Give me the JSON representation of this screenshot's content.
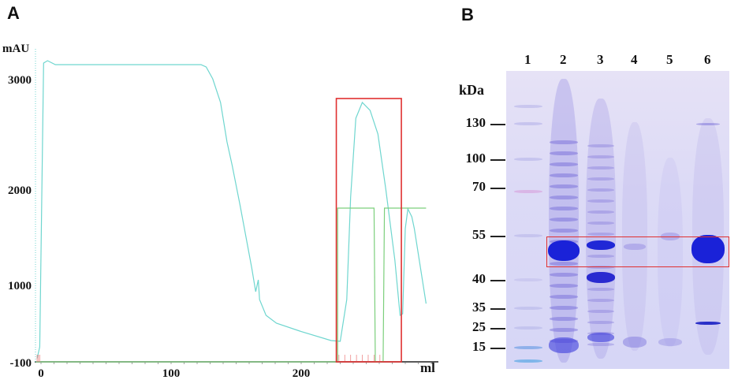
{
  "panel_a": {
    "label": "A",
    "chart_data": {
      "type": "line",
      "title": "",
      "xlabel": "ml",
      "ylabel": "mAU",
      "xlim": [
        -4,
        305
      ],
      "ylim": [
        -100,
        3300
      ],
      "x_ticks": [
        0,
        100,
        200
      ],
      "y_ticks": [
        -100,
        1000,
        2000,
        3000
      ],
      "grid": false,
      "series": [
        {
          "color": "#6fd6cf",
          "x": [
            -3,
            -1,
            2,
            5,
            11,
            29,
            123,
            127,
            132,
            138,
            143,
            147,
            153,
            162,
            165,
            167,
            168,
            173,
            181,
            199,
            223,
            230,
            235,
            238,
            242,
            247,
            253,
            259,
            265,
            272,
            276,
            278,
            280,
            282,
            285,
            287,
            296
          ],
          "y": [
            -66,
            62,
            3139,
            3165,
            3122,
            3122,
            3122,
            3097,
            2968,
            2712,
            2285,
            2028,
            1601,
            917,
            661,
            789,
            575,
            404,
            319,
            233,
            131,
            122,
            575,
            1686,
            2541,
            2712,
            2626,
            2370,
            1772,
            1003,
            404,
            421,
            1344,
            1558,
            1473,
            1344,
            532
          ]
        },
        {
          "color": "#7ccf7c",
          "x": [
            -4,
            228,
            228,
            256,
            257,
            263,
            264,
            296
          ],
          "y": [
            -100,
            -100,
            1567,
            1567,
            -100,
            -100,
            1567,
            1567
          ]
        }
      ],
      "highlight_box": {
        "x": [
          227,
          277
        ],
        "y": [
          -100,
          2755
        ],
        "color": "#e03030"
      }
    }
  },
  "panel_b": {
    "label": "B",
    "unit": "kDa",
    "lanes": [
      "1",
      "2",
      "3",
      "4",
      "5",
      "6"
    ],
    "markers": [
      "130",
      "100",
      "70",
      "55",
      "40",
      "35",
      "25",
      "15"
    ],
    "highlight_color": "#e03030"
  }
}
